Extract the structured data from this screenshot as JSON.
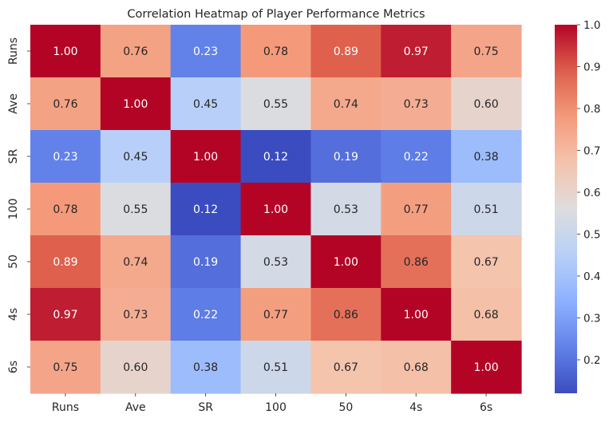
{
  "chart_data": {
    "type": "heatmap",
    "title": "Correlation Heatmap of Player Performance Metrics",
    "xlabel": "",
    "ylabel": "",
    "x_categories": [
      "Runs",
      "Ave",
      "SR",
      "100",
      "50",
      "4s",
      "6s"
    ],
    "y_categories": [
      "Runs",
      "Ave",
      "SR",
      "100",
      "50",
      "4s",
      "6s"
    ],
    "values": [
      [
        1.0,
        0.76,
        0.23,
        0.78,
        0.89,
        0.97,
        0.75
      ],
      [
        0.76,
        1.0,
        0.45,
        0.55,
        0.74,
        0.73,
        0.6
      ],
      [
        0.23,
        0.45,
        1.0,
        0.12,
        0.19,
        0.22,
        0.38
      ],
      [
        0.78,
        0.55,
        0.12,
        1.0,
        0.53,
        0.77,
        0.51
      ],
      [
        0.89,
        0.74,
        0.19,
        0.53,
        1.0,
        0.86,
        0.67
      ],
      [
        0.97,
        0.73,
        0.22,
        0.77,
        0.86,
        1.0,
        0.68
      ],
      [
        0.75,
        0.6,
        0.38,
        0.51,
        0.67,
        0.68,
        1.0
      ]
    ],
    "annotation_format": "0.00",
    "colormap": "coolwarm",
    "colorbar": {
      "min": 0.12,
      "max": 1.0,
      "ticks": [
        "0.2",
        "0.3",
        "0.4",
        "0.5",
        "0.6",
        "0.7",
        "0.8",
        "0.9",
        "1.0"
      ],
      "placement": "right"
    },
    "grid": false
  }
}
